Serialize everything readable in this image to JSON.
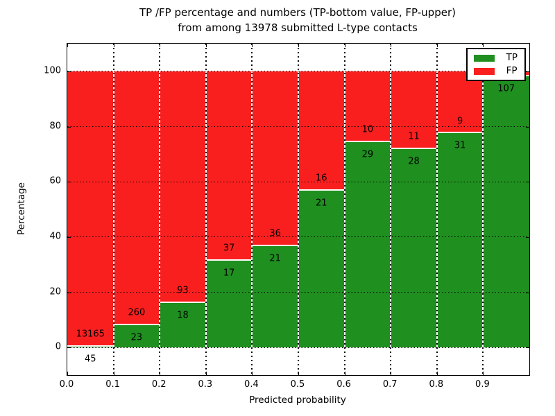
{
  "figure": {
    "title_line1": "TP /FP percentage and numbers (TP-bottom value, FP-upper)",
    "title_line2": "from among 13978 submitted L-type contacts"
  },
  "chart_data": {
    "type": "bar",
    "stacked": true,
    "title": "TP /FP percentage and numbers (TP-bottom value, FP-upper) from among 13978 submitted L-type contacts",
    "xlabel": "Predicted probability",
    "ylabel": "Percentage",
    "categories": [
      "0.0-0.1",
      "0.1-0.2",
      "0.2-0.3",
      "0.3-0.4",
      "0.4-0.5",
      "0.5-0.6",
      "0.6-0.7",
      "0.7-0.8",
      "0.8-0.9",
      "0.9-1.0"
    ],
    "x_tick_labels": [
      "0.0",
      "0.1",
      "0.2",
      "0.3",
      "0.4",
      "0.5",
      "0.6",
      "0.7",
      "0.8",
      "0.9"
    ],
    "y_tick_values": [
      0,
      20,
      40,
      60,
      80,
      100
    ],
    "xlim": [
      0.0,
      1.0
    ],
    "ylim": [
      -10,
      110
    ],
    "bin_width": 0.1,
    "grid": true,
    "series": [
      {
        "name": "TP",
        "color": "#1f8f1f",
        "counts": [
          45,
          23,
          18,
          17,
          21,
          21,
          29,
          28,
          31,
          107
        ],
        "pct": [
          0.3,
          8.1,
          16.2,
          31.5,
          36.8,
          56.8,
          74.4,
          71.8,
          77.5,
          98.2
        ]
      },
      {
        "name": "FP",
        "color": "#fa1f1f",
        "counts": [
          13165,
          260,
          93,
          37,
          36,
          16,
          10,
          11,
          9,
          null
        ],
        "pct": [
          99.7,
          91.9,
          83.8,
          68.5,
          63.2,
          43.2,
          25.6,
          28.2,
          22.5,
          1.8
        ]
      }
    ],
    "bar_labels": {
      "tp": [
        "45",
        "23",
        "18",
        "17",
        "21",
        "21",
        "29",
        "28",
        "31",
        "107"
      ],
      "fp": [
        "13165",
        "260",
        "93",
        "37",
        "36",
        "16",
        "10",
        "11",
        "9",
        ""
      ]
    },
    "legend": {
      "entries": [
        "TP",
        "FP"
      ],
      "position": "upper right"
    }
  }
}
